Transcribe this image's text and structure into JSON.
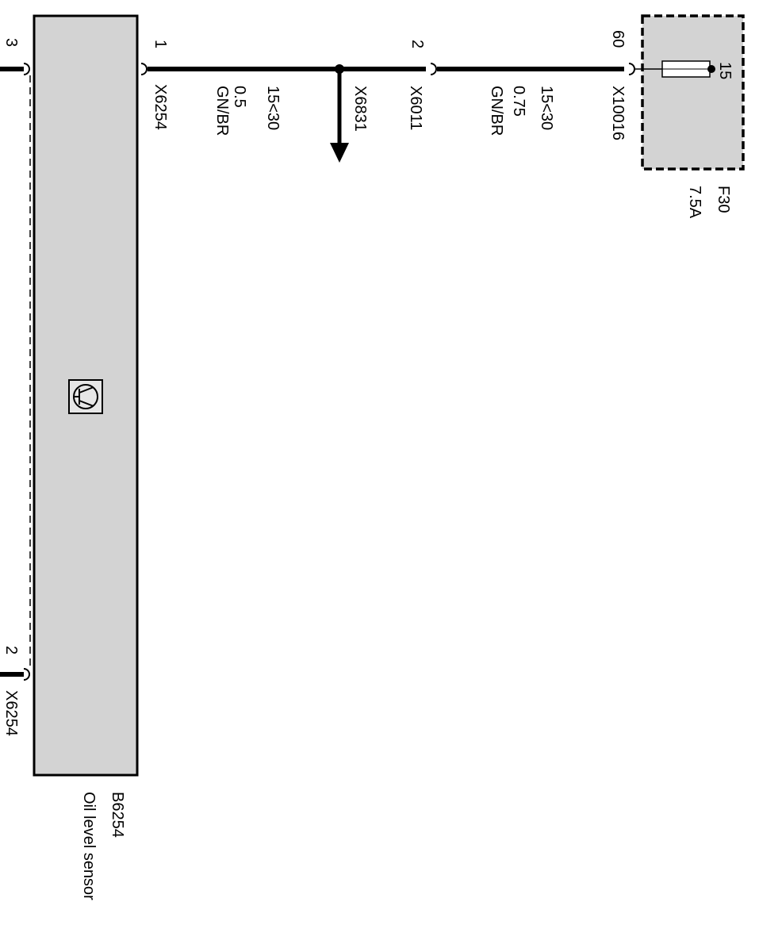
{
  "component": {
    "id": "B6254",
    "label": "Oil level sensor",
    "pins": {
      "left_top": "3",
      "right": "1",
      "left_bottom": "2"
    },
    "connector": "X6254",
    "connector_bottom": "X6254"
  },
  "wires": [
    {
      "from_pin": "1",
      "connector": "X6254",
      "signal": "15<30",
      "size": "0.5",
      "color": "GN/BR"
    },
    {
      "from_pin": "2",
      "connector": "X6011",
      "signal": "15<30",
      "size": "0.75",
      "color": "GN/BR"
    }
  ],
  "splice": "X6831",
  "fuse": {
    "id": "F30",
    "rating": "7.5A",
    "pin_in": "60",
    "pin_out": "15",
    "connector": "X10016"
  }
}
